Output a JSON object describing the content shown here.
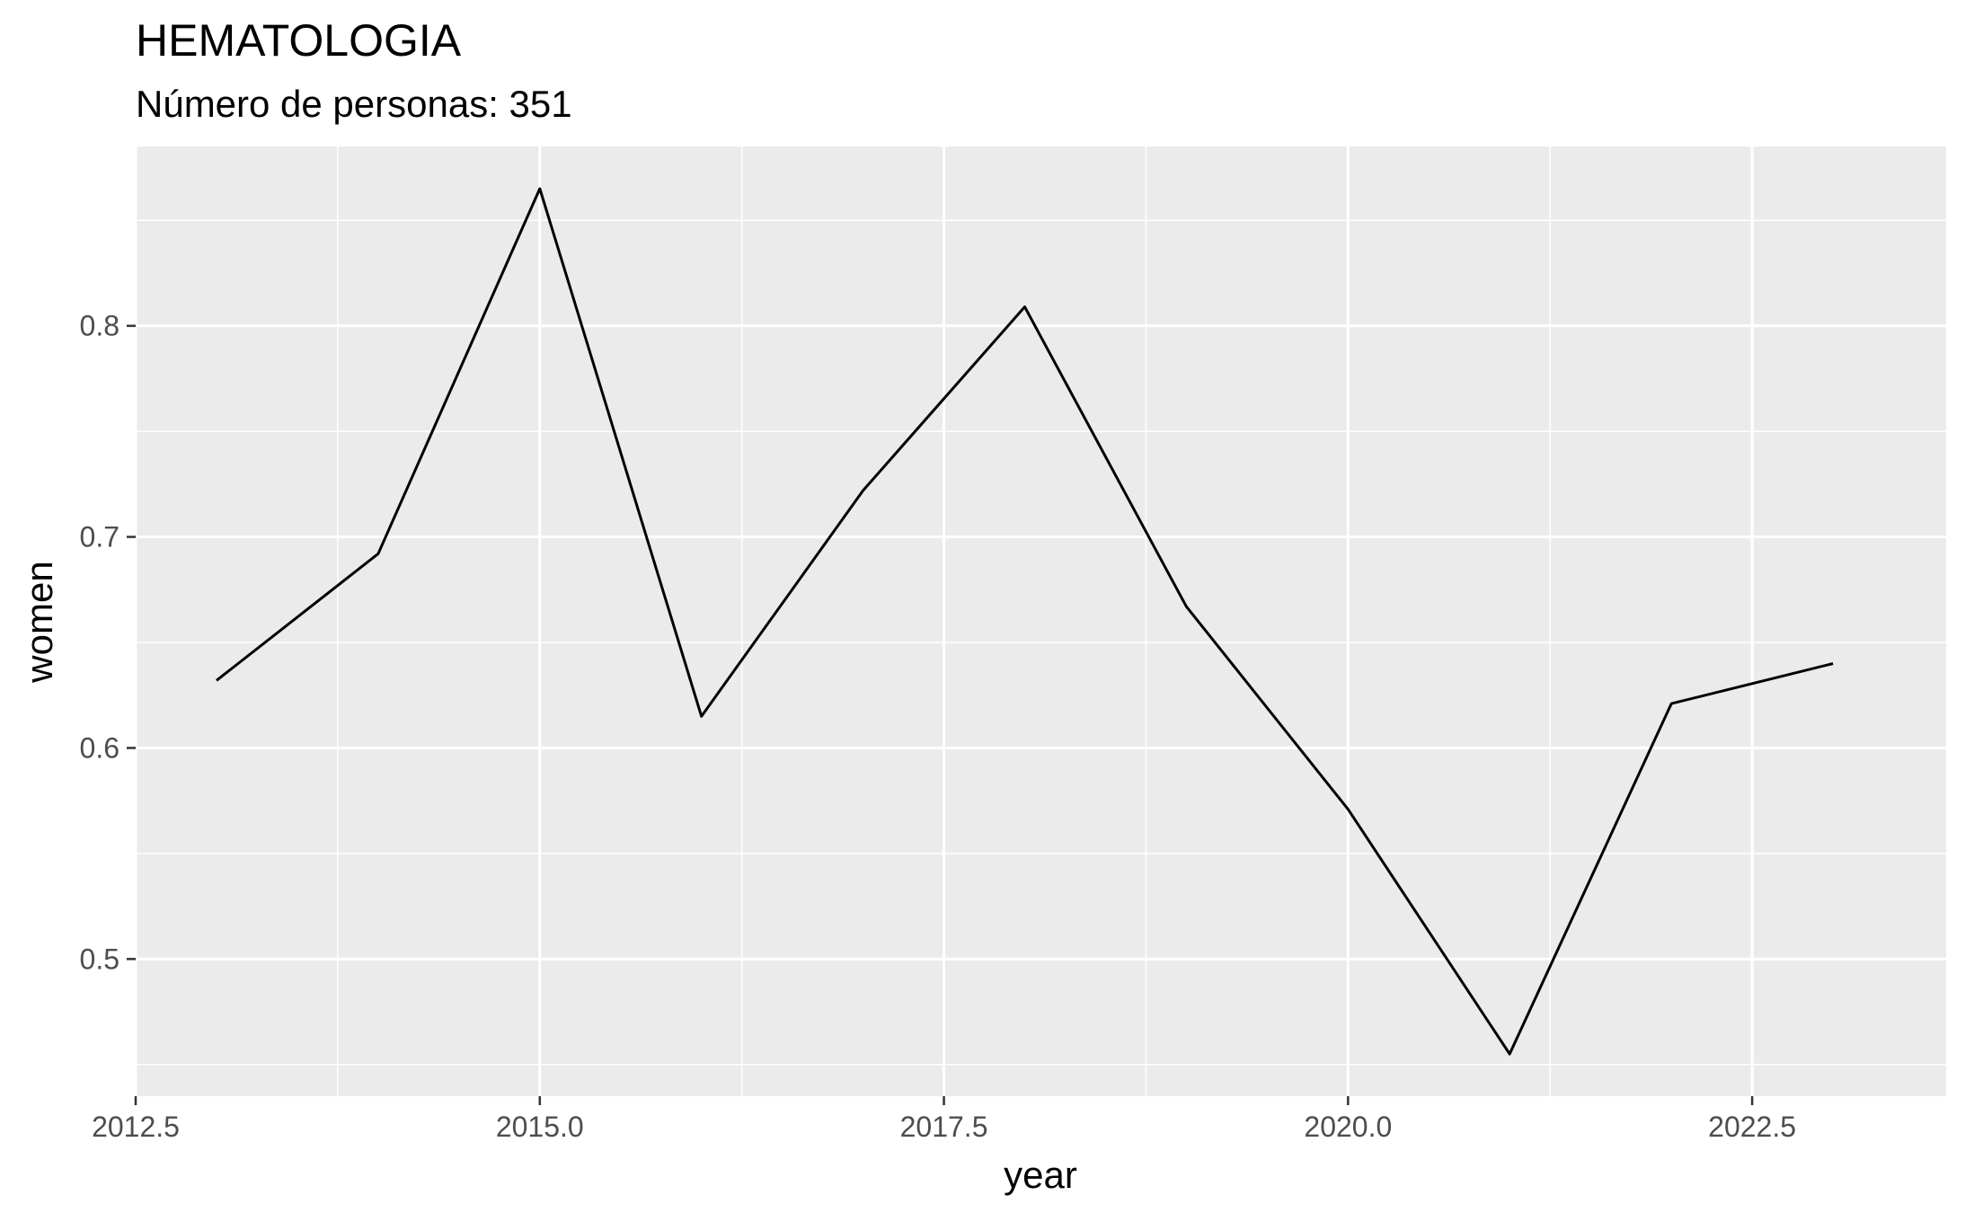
{
  "chart_data": {
    "type": "line",
    "title": "HEMATOLOGIA",
    "subtitle": "Número de personas: 351",
    "xlabel": "year",
    "ylabel": "women",
    "xlim": [
      2012.5,
      2023.7
    ],
    "ylim": [
      0.435,
      0.885
    ],
    "x_ticks": [
      2012.5,
      2015.0,
      2017.5,
      2020.0,
      2022.5
    ],
    "x_tick_labels": [
      "2012.5",
      "2015.0",
      "2017.5",
      "2020.0",
      "2022.5"
    ],
    "y_ticks": [
      0.5,
      0.6,
      0.7,
      0.8
    ],
    "y_tick_labels": [
      "0.5",
      "0.6",
      "0.7",
      "0.8"
    ],
    "grid": true,
    "background_color": "#ebebeb",
    "grid_color": "#ffffff",
    "line_color": "#000000",
    "series": [
      {
        "x": [
          2013,
          2014,
          2015,
          2016,
          2017,
          2018,
          2019,
          2020,
          2021,
          2022,
          2023
        ],
        "values": [
          0.632,
          0.692,
          0.865,
          0.615,
          0.722,
          0.809,
          0.667,
          0.571,
          0.455,
          0.621,
          0.64
        ]
      }
    ]
  }
}
